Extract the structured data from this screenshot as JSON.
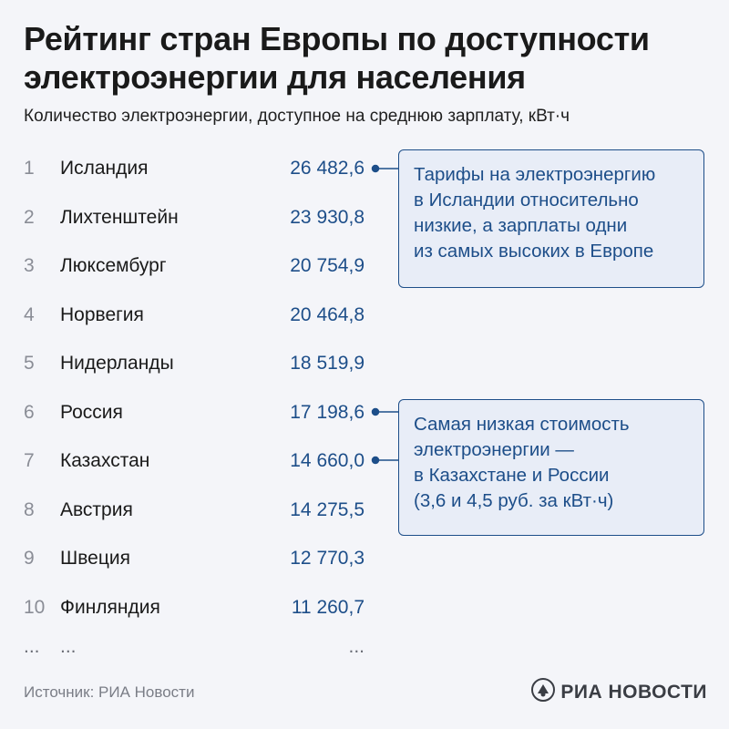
{
  "title": "Рейтинг стран Европы по доступности электроэнергии для населения",
  "subtitle": "Количество электроэнергии, доступное на среднюю зарплату, кВт·ч",
  "chart_data": {
    "type": "table",
    "title": "Рейтинг стран Европы по доступности электроэнергии для населения",
    "subtitle": "Количество электроэнергии, доступное на среднюю зарплату, кВт·ч",
    "rows": [
      {
        "rank": "1",
        "country": "Исландия",
        "value": 26482.6,
        "value_text": "26 482,6"
      },
      {
        "rank": "2",
        "country": "Лихтенштейн",
        "value": 23930.8,
        "value_text": "23 930,8"
      },
      {
        "rank": "3",
        "country": "Люксембург",
        "value": 20754.9,
        "value_text": "20 754,9"
      },
      {
        "rank": "4",
        "country": "Норвегия",
        "value": 20464.8,
        "value_text": "20 464,8"
      },
      {
        "rank": "5",
        "country": "Нидерланды",
        "value": 18519.9,
        "value_text": "18 519,9"
      },
      {
        "rank": "6",
        "country": "Россия",
        "value": 17198.6,
        "value_text": "17 198,6"
      },
      {
        "rank": "7",
        "country": "Казахстан",
        "value": 14660.0,
        "value_text": "14 660,0"
      },
      {
        "rank": "8",
        "country": "Австрия",
        "value": 14275.5,
        "value_text": "14 275,5"
      },
      {
        "rank": "9",
        "country": "Швеция",
        "value": 12770.3,
        "value_text": "12 770,3"
      },
      {
        "rank": "10",
        "country": "Финляндия",
        "value": 11260.7,
        "value_text": "11 260,7"
      }
    ],
    "ellipsis": {
      "rank": "...",
      "country": "...",
      "value_text": "..."
    }
  },
  "callouts": [
    {
      "lines": [
        "Тарифы на электроэнергию",
        "в Исландии относительно",
        "низкие, а зарплаты одни",
        "из самых высоких в Европе"
      ],
      "points_to_ranks": [
        "1"
      ]
    },
    {
      "lines": [
        "Самая низкая стоимость",
        "электроэнергии —",
        "в Казахстане и России",
        "(3,6 и 4,5 руб. за кВт·ч)"
      ],
      "points_to_ranks": [
        "6",
        "7"
      ]
    }
  ],
  "colors": {
    "accent": "#1d4e89",
    "callout_bg": "#e8edf7",
    "rank": "#8a8d96",
    "background": "#f4f5f9"
  },
  "footer": {
    "source": "Источник: РИА Новости",
    "logo_text": "РИА НОВОСТИ",
    "logo_icon": "ria-novosti-logo-icon"
  }
}
